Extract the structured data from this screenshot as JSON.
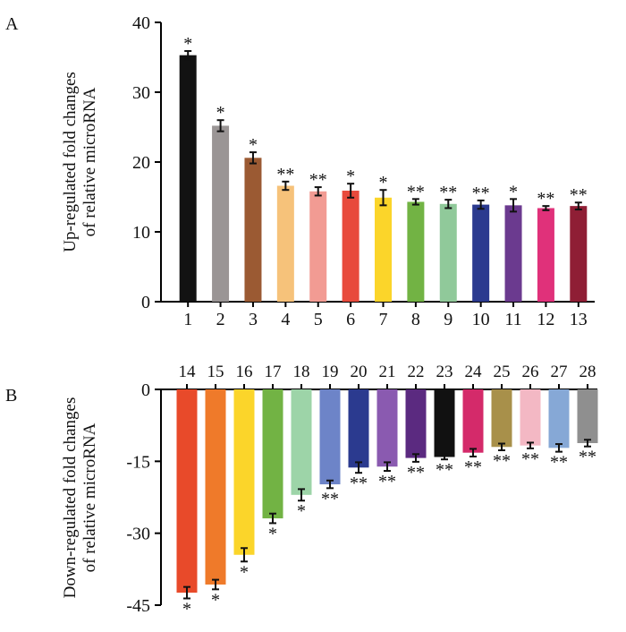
{
  "chart_data": [
    {
      "type": "bar",
      "panel_label": "A",
      "ylabel_lines": [
        "Up-regulated fold changes",
        "of relative microRNA"
      ],
      "ylim": [
        0,
        40
      ],
      "yticks": [
        0,
        10,
        20,
        30,
        40
      ],
      "ytick_labels": [
        "0",
        "10",
        "20",
        "30",
        "40"
      ],
      "categories": [
        "1",
        "2",
        "3",
        "4",
        "5",
        "6",
        "7",
        "8",
        "9",
        "10",
        "11",
        "12",
        "13"
      ],
      "values": [
        35.3,
        25.2,
        20.6,
        16.6,
        15.8,
        15.9,
        14.9,
        14.3,
        14.0,
        13.9,
        13.8,
        13.4,
        13.7
      ],
      "errors": [
        0.6,
        0.8,
        0.8,
        0.6,
        0.6,
        1.0,
        1.1,
        0.4,
        0.6,
        0.6,
        0.9,
        0.3,
        0.5
      ],
      "significance": [
        "*",
        "*",
        "*",
        "**",
        "**",
        "*",
        "*",
        "**",
        "**",
        "**",
        "*",
        "**",
        "**"
      ],
      "colors": [
        "#121212",
        "#9a9595",
        "#9b5a33",
        "#f6c27a",
        "#f29b93",
        "#e84a3c",
        "#fbd52a",
        "#72b344",
        "#90c99a",
        "#2b3a8f",
        "#6b3a8f",
        "#e0317a",
        "#8f1e35"
      ]
    },
    {
      "type": "bar",
      "panel_label": "B",
      "ylabel_lines": [
        "Down-regulated fold changes",
        "of relative microRNA"
      ],
      "ylim": [
        -45,
        0
      ],
      "yticks": [
        0,
        -15,
        -30,
        -45
      ],
      "ytick_labels": [
        "0",
        "-15",
        "-30",
        "-45"
      ],
      "categories": [
        "14",
        "15",
        "16",
        "17",
        "18",
        "19",
        "20",
        "21",
        "22",
        "23",
        "24",
        "25",
        "26",
        "27",
        "28"
      ],
      "values": [
        -42.4,
        -40.7,
        -34.5,
        -26.9,
        -22.0,
        -19.8,
        -16.3,
        -16.1,
        -14.3,
        -14.1,
        -13.2,
        -12.0,
        -11.7,
        -12.2,
        -11.2
      ],
      "errors": [
        1.2,
        1.0,
        1.4,
        1.0,
        1.2,
        0.8,
        1.1,
        0.9,
        0.8,
        0.5,
        0.8,
        0.7,
        0.6,
        0.8,
        0.7
      ],
      "significance": [
        "*",
        "*",
        "*",
        "*",
        "*",
        "**",
        "**",
        "**",
        "**",
        "**",
        "**",
        "**",
        "**",
        "**",
        "**"
      ],
      "colors": [
        "#e84a2a",
        "#ef7a2a",
        "#fbd52a",
        "#72b344",
        "#9dd4a8",
        "#6d84c8",
        "#2b3a8f",
        "#8a5ab0",
        "#5b2a80",
        "#111111",
        "#d42a6a",
        "#a8904a",
        "#f3b8c4",
        "#86a8d6",
        "#8f8f8f"
      ]
    }
  ]
}
